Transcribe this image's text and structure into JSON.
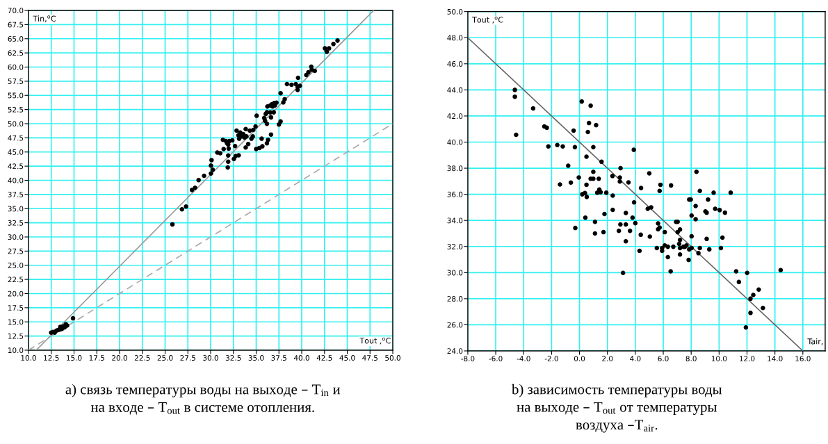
{
  "chart_data": [
    {
      "type": "scatter",
      "title": "a) связь температуры воды на выходе – T$_{in}$ и\nна входе – T$_{out}$ в системе отопления.",
      "xlabel": "Tout ,$^{o}$C",
      "ylabel": "Tin,$^{o}$C",
      "xlim": [
        10,
        50
      ],
      "ylim": [
        10,
        70
      ],
      "xticks": [
        {
          "value": 10,
          "label": "10.0"
        },
        {
          "value": 12.5,
          "label": "12.5"
        },
        {
          "value": 15,
          "label": "15.0"
        },
        {
          "value": 17.5,
          "label": "17.5"
        },
        {
          "value": 20,
          "label": "20.0"
        },
        {
          "value": 22.5,
          "label": "22.5"
        },
        {
          "value": 25,
          "label": "25.0"
        },
        {
          "value": 27.5,
          "label": "27.5"
        },
        {
          "value": 30,
          "label": "30.0"
        },
        {
          "value": 32.5,
          "label": "32.5"
        },
        {
          "value": 35,
          "label": "35.0"
        },
        {
          "value": 37.5,
          "label": "37.5"
        },
        {
          "value": 40,
          "label": "40.0"
        },
        {
          "value": 42.5,
          "label": "42.5"
        },
        {
          "value": 45,
          "label": "45.0"
        },
        {
          "value": 47.5,
          "label": "47.5"
        },
        {
          "value": 50,
          "label": "50.0"
        }
      ],
      "yticks": [
        {
          "value": 10,
          "label": "10.0"
        },
        {
          "value": 12.5,
          "label": "12.5"
        },
        {
          "value": 15,
          "label": "15.0"
        },
        {
          "value": 17.5,
          "label": "17.5"
        },
        {
          "value": 20,
          "label": "20.0"
        },
        {
          "value": 22.5,
          "label": "22.5"
        },
        {
          "value": 25,
          "label": "25.0"
        },
        {
          "value": 27.5,
          "label": "27.5"
        },
        {
          "value": 30,
          "label": "30.0"
        },
        {
          "value": 32.5,
          "label": "32.5"
        },
        {
          "value": 35,
          "label": "35.0"
        },
        {
          "value": 37.5,
          "label": "37.5"
        },
        {
          "value": 40,
          "label": "40.0"
        },
        {
          "value": 42.5,
          "label": "42.5"
        },
        {
          "value": 45,
          "label": "45.0"
        },
        {
          "value": 47.5,
          "label": "47.5"
        },
        {
          "value": 50,
          "label": "50.0"
        },
        {
          "value": 52.5,
          "label": "52.5"
        },
        {
          "value": 55,
          "label": "55.0"
        },
        {
          "value": 57.5,
          "label": "57.5"
        },
        {
          "value": 60,
          "label": "60.0"
        },
        {
          "value": 62.5,
          "label": "62.5"
        },
        {
          "value": 65,
          "label": "65.0"
        },
        {
          "value": 67.5,
          "label": "67.5"
        },
        {
          "value": 70,
          "label": "70.0"
        }
      ],
      "grid": true,
      "legend": false,
      "series": [
        {
          "type": "line",
          "color": "#aaaaaa",
          "line_style": "dashed",
          "marker": "none",
          "x": [
            10,
            50
          ],
          "values": [
            10,
            50
          ]
        },
        {
          "type": "line",
          "color": "#999999",
          "line_style": "solid",
          "marker": "none",
          "x": [
            10.85,
            47.9
          ],
          "values": [
            10,
            70
          ]
        },
        {
          "color": "#000000",
          "marker": "circle",
          "x": [
            12.49,
            12.69,
            12.88,
            13.05,
            13.25,
            13.45,
            13.5,
            13.67,
            13.82,
            13.96,
            14.1,
            14.24,
            14.89,
            25.8,
            26.85,
            27.3,
            27.95,
            28.29,
            28.68,
            29.28,
            30.03,
            30.23,
            30.03,
            30.1,
            31.88,
            31.93,
            31.93,
            32.55,
            32.75,
            33.08,
            32.68,
            31.98,
            31.43,
            30.73,
            31.05,
            31.35,
            31.68,
            31.8,
            31.93,
            32.05,
            32.38,
            32.85,
            33.25,
            33.05,
            33.13,
            33.38,
            33.58,
            33.85,
            33.73,
            33.93,
            34.13,
            33.85,
            34.3,
            34.48,
            34.63,
            34.68,
            34.93,
            35.05,
            35.0,
            35.35,
            35.6,
            35.68,
            36.18,
            36.3,
            36.63,
            35.88,
            36.05,
            36.18,
            36.55,
            35.98,
            36.18,
            36.63,
            36.23,
            36.55,
            36.73,
            36.98,
            37.23,
            36.8,
            37.05,
            36.93,
            37.5,
            37.68,
            37.98,
            38.13,
            37.68,
            38.38,
            38.88,
            39.35,
            39.6,
            39.55,
            39.55,
            39.8,
            40.5,
            40.73,
            41.05,
            41.1,
            41.43,
            42.55,
            42.75,
            43.0,
            43.48,
            43.93
          ],
          "values": [
            13.11,
            13.21,
            13.11,
            13.44,
            13.57,
            13.66,
            14.12,
            13.76,
            14.21,
            14.03,
            14.58,
            14.35,
            15.63,
            32.22,
            34.87,
            35.37,
            38.3,
            38.68,
            40.04,
            40.8,
            41.2,
            41.87,
            42.6,
            43.57,
            42.27,
            43.29,
            44.38,
            43.77,
            44.3,
            44.42,
            46.05,
            45.6,
            45.52,
            44.9,
            44.79,
            47.14,
            46.94,
            46.53,
            46.33,
            46.94,
            47.06,
            48.77,
            48.44,
            47.95,
            47.35,
            47.75,
            48.16,
            49.05,
            47.55,
            47.75,
            46.41,
            45.8,
            48.77,
            47.35,
            47.75,
            48.89,
            49.5,
            51.4,
            45.52,
            45.72,
            47.35,
            46.0,
            46.53,
            47.14,
            48.08,
            51.0,
            51.73,
            52.01,
            52.0,
            50.51,
            49.98,
            51.12,
            53.03,
            53.23,
            53.43,
            53.64,
            53.72,
            53.03,
            53.23,
            52.01,
            49.86,
            50.39,
            53.76,
            54.33,
            55.38,
            57.0,
            56.88,
            57.0,
            58.1,
            56.48,
            55.95,
            56.68,
            58.59,
            59.07,
            60.05,
            59.52,
            59.32,
            63.3,
            62.69,
            63.3,
            64.07,
            64.68
          ]
        }
      ]
    },
    {
      "type": "scatter",
      "title": "b) зависимость температуры воды\nна выходе – T$_{out}$ от температуры\nвоздуха –T$_{air}$.",
      "xlabel": "Tair,",
      "ylabel": "Tout ,$^{o}$C",
      "xlim": [
        -8,
        17.6
      ],
      "ylim": [
        24,
        50
      ],
      "xticks": [
        {
          "value": -8,
          "label": "-8.0"
        },
        {
          "value": -6,
          "label": "-6.0"
        },
        {
          "value": -4,
          "label": "-4.0"
        },
        {
          "value": -2,
          "label": "-2.0"
        },
        {
          "value": 0,
          "label": "0.0"
        },
        {
          "value": 2,
          "label": "2.0"
        },
        {
          "value": 4,
          "label": "4.0"
        },
        {
          "value": 6,
          "label": "6.0"
        },
        {
          "value": 8,
          "label": "8.0"
        },
        {
          "value": 10,
          "label": "10.0"
        },
        {
          "value": 12,
          "label": "12.0"
        },
        {
          "value": 14,
          "label": "14.0"
        },
        {
          "value": 16,
          "label": "16.0"
        }
      ],
      "yticks": [
        {
          "value": 24,
          "label": "24.0"
        },
        {
          "value": 26,
          "label": "26.0"
        },
        {
          "value": 28,
          "label": "28.0"
        },
        {
          "value": 30,
          "label": "30.0"
        },
        {
          "value": 32,
          "label": "32.0"
        },
        {
          "value": 34,
          "label": "34.0"
        },
        {
          "value": 36,
          "label": "36.0"
        },
        {
          "value": 38,
          "label": "38.0"
        },
        {
          "value": 40,
          "label": "40.0"
        },
        {
          "value": 42,
          "label": "42.0"
        },
        {
          "value": 44,
          "label": "44.0"
        },
        {
          "value": 46,
          "label": "46.0"
        },
        {
          "value": 48,
          "label": "48.0"
        },
        {
          "value": 50,
          "label": "50.0"
        }
      ],
      "grid": true,
      "legend": false,
      "series": [
        {
          "type": "line",
          "color": "#666666",
          "line_style": "solid",
          "marker": "none",
          "x": [
            -8,
            16
          ],
          "values": [
            48,
            24
          ]
        },
        {
          "color": "#000000",
          "marker": "circle",
          "x": [
            -4.63,
            -4.63,
            -4.54,
            -3.32,
            -2.52,
            -2.34,
            -2.23,
            -1.59,
            -1.2,
            -0.81,
            -0.42,
            -0.33,
            0.16,
            0.8,
            0.68,
            0.6,
            1.19,
            0.99,
            0.5,
            1.58,
            0.99,
            -0.05,
            -0.62,
            -1.4,
            0.5,
            0.8,
            0.99,
            1.38,
            2.36,
            2.89,
            2.89,
            2.94,
            3.89,
            3.51,
            5.0,
            5.8,
            6.56,
            8.38,
            4.41,
            5.74,
            0.2,
            0.39,
            0.52,
            1.27,
            1.42,
            1.51,
            1.92,
            2.38,
            -0.3,
            0.42,
            1.11,
            1.11,
            1.72,
            1.79,
            2.38,
            2.82,
            2.93,
            3.32,
            3.32,
            3.32,
            3.62,
            3.8,
            3.91,
            4.0,
            3.12,
            4.39,
            4.3,
            5.04,
            4.89,
            5.13,
            5.54,
            5.63,
            5.63,
            5.74,
            5.92,
            5.92,
            6.11,
            6.11,
            6.33,
            6.33,
            6.53,
            6.72,
            6.92,
            7.03,
            7.03,
            7.14,
            7.2,
            7.2,
            7.2,
            7.2,
            7.45,
            7.66,
            7.55,
            7.86,
            7.82,
            7.86,
            7.97,
            8.03,
            8.03,
            8.03,
            8.32,
            8.32,
            8.52,
            8.62,
            8.62,
            9.11,
            9.02,
            9.11,
            9.21,
            9.3,
            9.61,
            9.72,
            10.04,
            10.13,
            10.24,
            10.42,
            10.83,
            11.22,
            11.42,
            12.01,
            12.25,
            12.25,
            12.45,
            12.84,
            13.14,
            11.92,
            14.41
          ],
          "values": [
            44.0,
            43.48,
            40.56,
            42.58,
            41.2,
            41.1,
            39.67,
            39.77,
            39.67,
            38.19,
            40.88,
            39.61,
            43.11,
            42.79,
            41.46,
            40.77,
            41.3,
            39.61,
            38.88,
            38.49,
            37.72,
            37.29,
            36.9,
            36.75,
            36.73,
            37.19,
            37.19,
            37.19,
            37.4,
            37.28,
            36.98,
            38.0,
            39.41,
            36.91,
            37.61,
            36.73,
            36.68,
            37.72,
            36.48,
            36.26,
            36.0,
            36.1,
            35.8,
            36.12,
            36.36,
            36.16,
            36.12,
            35.9,
            33.42,
            34.21,
            33.89,
            33.0,
            33.1,
            34.49,
            34.81,
            33.2,
            33.69,
            34.57,
            33.69,
            32.4,
            33.2,
            34.21,
            35.38,
            33.79,
            29.98,
            32.9,
            31.67,
            32.76,
            34.89,
            35.0,
            31.88,
            33.77,
            33.32,
            33.45,
            31.88,
            31.67,
            33.1,
            32.08,
            31.98,
            31.19,
            30.1,
            31.98,
            33.89,
            33.89,
            33.1,
            32.2,
            33.3,
            32.5,
            31.88,
            31.39,
            31.98,
            32.08,
            31.98,
            31.78,
            30.97,
            35.6,
            35.6,
            32.78,
            34.37,
            31.88,
            35.1,
            34.09,
            31.49,
            31.88,
            36.26,
            32.58,
            34.69,
            34.59,
            35.6,
            31.78,
            36.12,
            34.89,
            34.79,
            31.88,
            32.68,
            34.59,
            36.12,
            30.1,
            29.28,
            29.98,
            28.0,
            26.91,
            28.29,
            28.7,
            27.29,
            25.8,
            30.19
          ]
        }
      ]
    }
  ]
}
